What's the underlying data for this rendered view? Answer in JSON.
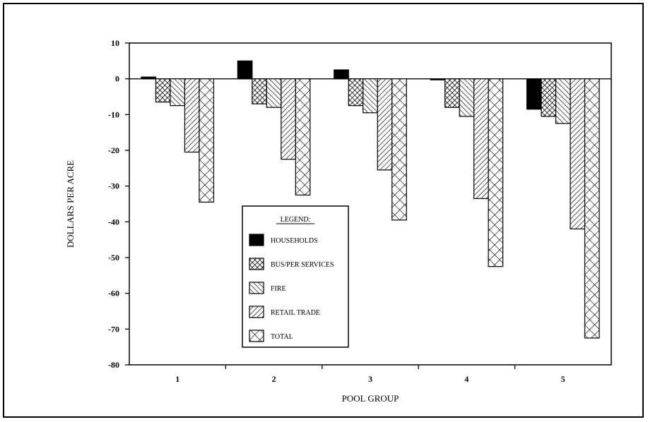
{
  "chart_data": {
    "type": "bar",
    "xlabel": "POOL GROUP",
    "ylabel": "DOLLARS PER ACRE",
    "categories": [
      "1",
      "2",
      "3",
      "4",
      "5"
    ],
    "ylim": [
      -80,
      10
    ],
    "yticks": [
      10,
      0,
      -10,
      -20,
      -30,
      -40,
      -50,
      -60,
      -70,
      -80
    ],
    "legend_title": "LEGEND:",
    "legend_position": "center",
    "grid": false,
    "series": [
      {
        "name": "HOUSEHOLDS",
        "pattern": "solid",
        "values": [
          0.5,
          5,
          2.5,
          -0.3,
          -8.5
        ]
      },
      {
        "name": "BUS/PER SERVICES",
        "pattern": "crosshatch-fine",
        "values": [
          -6.5,
          -7,
          -7.5,
          -8,
          -10.5
        ]
      },
      {
        "name": "FIRE",
        "pattern": "diagonal-up",
        "values": [
          -7.5,
          -8,
          -9.5,
          -10.5,
          -12.5
        ]
      },
      {
        "name": "RETAIL TRADE",
        "pattern": "diagonal-down",
        "values": [
          -20.5,
          -22.5,
          -25.5,
          -33.5,
          -42
        ]
      },
      {
        "name": "TOTAL",
        "pattern": "crosshatch-large",
        "values": [
          -34.5,
          -32.5,
          -39.5,
          -52.5,
          -72.5
        ]
      }
    ]
  }
}
